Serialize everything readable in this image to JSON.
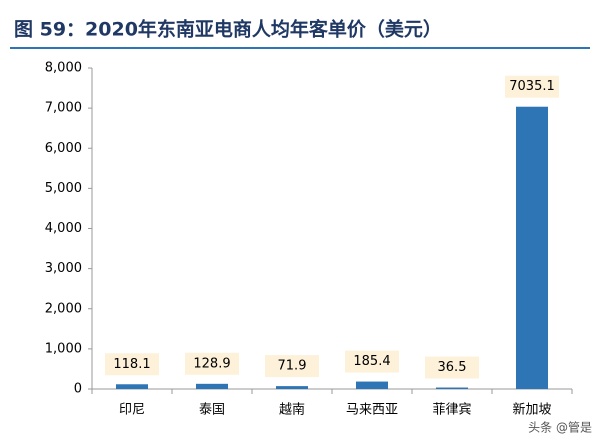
{
  "chart_data": {
    "type": "bar",
    "title": "图 59：2020年东南亚电商人均年客单价（美元）",
    "categories": [
      "印尼",
      "泰国",
      "越南",
      "马来西亚",
      "菲律宾",
      "新加坡"
    ],
    "values": [
      118.1,
      128.9,
      71.9,
      185.4,
      36.5,
      7035.1
    ],
    "color": "#2e75b6",
    "ylim": [
      0,
      8000
    ],
    "yticks": [
      0,
      {
        "value": 1000,
        "label": "1,000"
      },
      {
        "value": 2000,
        "label": "2,000"
      },
      {
        "value": 3000,
        "label": "3,000"
      },
      {
        "value": 4000,
        "label": "4,000"
      },
      {
        "value": 5000,
        "label": "5,000"
      },
      {
        "value": 6000,
        "label": "6,000"
      },
      {
        "value": 7000,
        "label": "7,000"
      },
      {
        "value": 8000,
        "label": "8,000"
      }
    ],
    "grid": false,
    "watermark": "头条 @管是"
  }
}
